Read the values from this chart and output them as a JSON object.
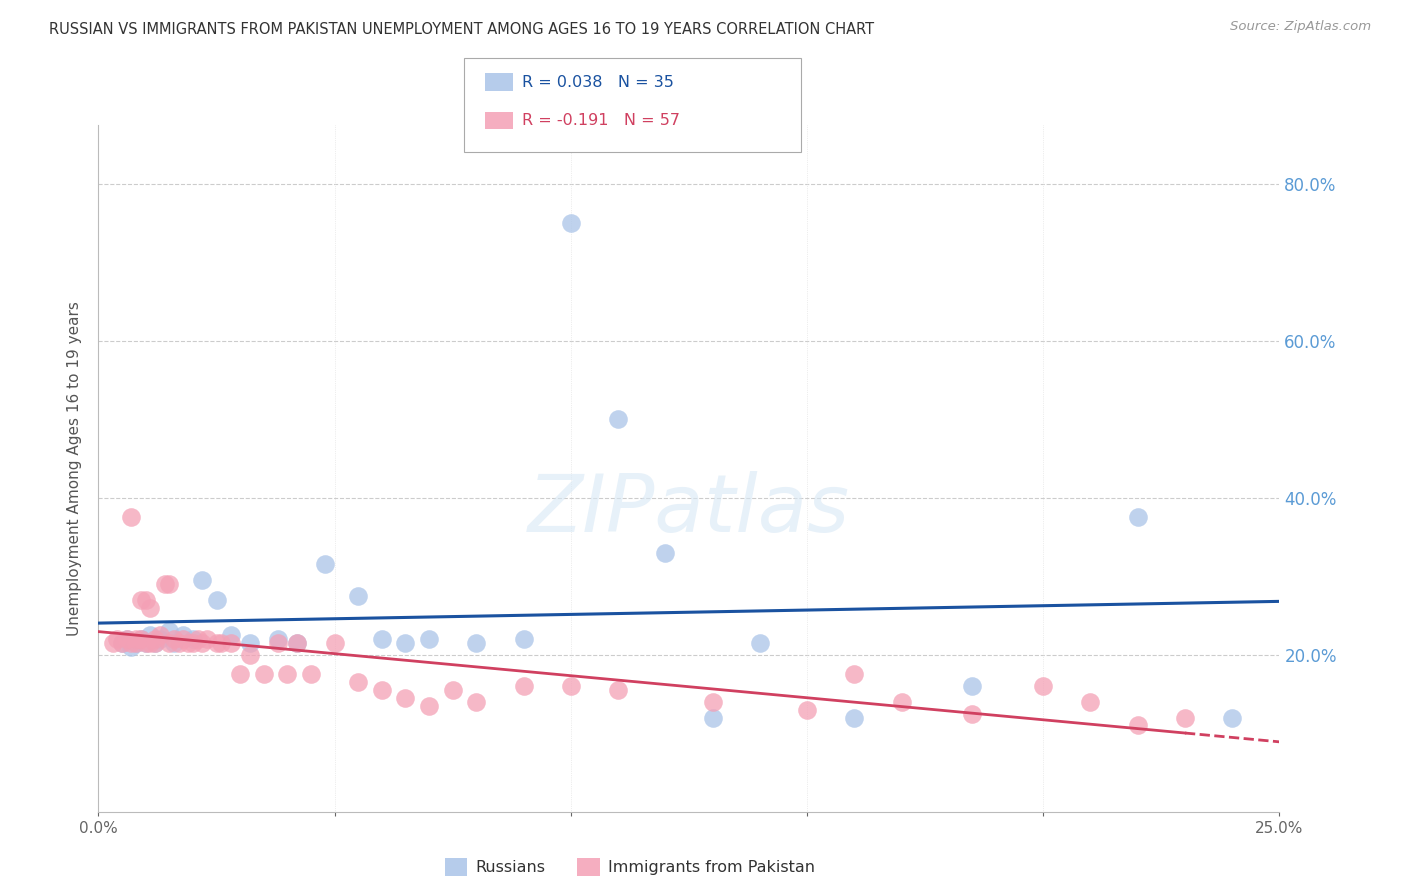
{
  "title": "RUSSIAN VS IMMIGRANTS FROM PAKISTAN UNEMPLOYMENT AMONG AGES 16 TO 19 YEARS CORRELATION CHART",
  "source": "Source: ZipAtlas.com",
  "ylabel": "Unemployment Among Ages 16 to 19 years",
  "ytick_values": [
    0.2,
    0.4,
    0.6,
    0.8
  ],
  "ytick_labels": [
    "20.0%",
    "40.0%",
    "60.0%",
    "80.0%"
  ],
  "xlim": [
    0.0,
    0.25
  ],
  "ylim": [
    0.0,
    0.875
  ],
  "background_color": "#ffffff",
  "grid_color": "#cccccc",
  "title_color": "#333333",
  "right_axis_color": "#5b9bd5",
  "blue_color": "#aac4e8",
  "pink_color": "#f4a0b5",
  "blue_line_color": "#1a52a0",
  "pink_line_solid_color": "#d04060",
  "pink_line_dash_color": "#d04060",
  "legend_text1": "R = 0.038",
  "legend_n1": "N = 35",
  "legend_text2": "R = -0.191",
  "legend_n2": "N = 57",
  "legend_label1": "Russians",
  "legend_label2": "Immigrants from Pakistan",
  "russians_x": [
    0.005,
    0.006,
    0.007,
    0.008,
    0.009,
    0.01,
    0.011,
    0.012,
    0.013,
    0.015,
    0.016,
    0.018,
    0.02,
    0.022,
    0.025,
    0.028,
    0.032,
    0.038,
    0.042,
    0.048,
    0.055,
    0.06,
    0.065,
    0.07,
    0.08,
    0.09,
    0.1,
    0.11,
    0.12,
    0.14,
    0.16,
    0.185,
    0.22,
    0.24,
    0.13
  ],
  "russians_y": [
    0.215,
    0.22,
    0.21,
    0.215,
    0.22,
    0.215,
    0.225,
    0.215,
    0.22,
    0.23,
    0.215,
    0.225,
    0.22,
    0.295,
    0.27,
    0.225,
    0.215,
    0.22,
    0.215,
    0.315,
    0.275,
    0.22,
    0.215,
    0.22,
    0.215,
    0.22,
    0.75,
    0.5,
    0.33,
    0.215,
    0.12,
    0.16,
    0.375,
    0.12,
    0.12
  ],
  "pakistan_x": [
    0.003,
    0.004,
    0.005,
    0.006,
    0.007,
    0.007,
    0.008,
    0.008,
    0.009,
    0.009,
    0.01,
    0.01,
    0.011,
    0.011,
    0.012,
    0.012,
    0.013,
    0.014,
    0.015,
    0.015,
    0.016,
    0.017,
    0.018,
    0.019,
    0.02,
    0.021,
    0.022,
    0.023,
    0.025,
    0.026,
    0.028,
    0.03,
    0.032,
    0.035,
    0.038,
    0.04,
    0.042,
    0.045,
    0.05,
    0.055,
    0.06,
    0.065,
    0.07,
    0.075,
    0.08,
    0.09,
    0.1,
    0.11,
    0.13,
    0.15,
    0.16,
    0.17,
    0.185,
    0.2,
    0.21,
    0.22,
    0.23
  ],
  "pakistan_y": [
    0.215,
    0.22,
    0.215,
    0.22,
    0.215,
    0.375,
    0.22,
    0.215,
    0.27,
    0.22,
    0.215,
    0.27,
    0.26,
    0.215,
    0.22,
    0.215,
    0.225,
    0.29,
    0.215,
    0.29,
    0.22,
    0.215,
    0.22,
    0.215,
    0.215,
    0.22,
    0.215,
    0.22,
    0.215,
    0.215,
    0.215,
    0.175,
    0.2,
    0.175,
    0.215,
    0.175,
    0.215,
    0.175,
    0.215,
    0.165,
    0.155,
    0.145,
    0.135,
    0.155,
    0.14,
    0.16,
    0.16,
    0.155,
    0.14,
    0.13,
    0.175,
    0.14,
    0.125,
    0.16,
    0.14,
    0.11,
    0.12
  ]
}
